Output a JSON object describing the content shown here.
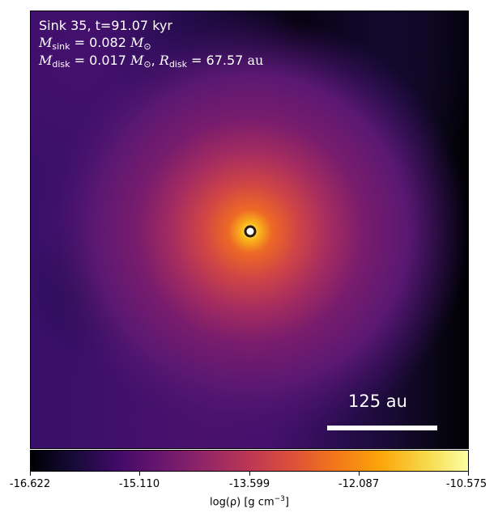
{
  "panel": {
    "line1": "Sink 35, t=91.07 kyr",
    "m_sink_label": "M",
    "m_sink_sub": "sink",
    "m_sink_value": " = 0.082 ",
    "m_sink_unit": "M",
    "m_sink_unit_sub": "⊙",
    "m_disk_label": "M",
    "m_disk_sub": "disk",
    "m_disk_value": " = 0.017 ",
    "m_disk_unit": "M",
    "m_disk_unit_sub": "⊙",
    "r_disk_sep": ", ",
    "r_disk_label": "R",
    "r_disk_sub": "disk",
    "r_disk_value": " = 67.57 ",
    "r_disk_unit": "au"
  },
  "scalebar": {
    "label": "125 au"
  },
  "colorbar": {
    "ticks": [
      "-16.622",
      "-15.110",
      "-13.599",
      "-12.087",
      "-10.575"
    ],
    "label_main": "log(ρ) [g cm",
    "label_exp": "−3",
    "label_end": "]",
    "colormap": "inferno"
  },
  "colors": {
    "background_dark": "#120a2e",
    "core_bright": "#fcffa4",
    "sink_marker_edge": "#2b1a08",
    "sink_marker_face": "#ffffff"
  }
}
